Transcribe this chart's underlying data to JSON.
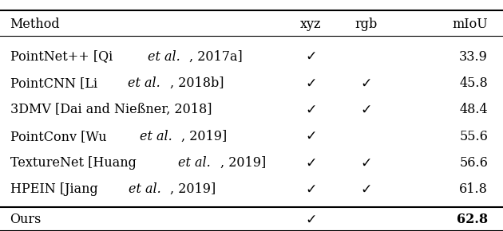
{
  "bg_color": "#ffffff",
  "text_color": "#000000",
  "line_color": "#000000",
  "font_size": 11.5,
  "rows": [
    {
      "method_parts": [
        {
          "text": "PointNet++ [Qi ",
          "italic": false
        },
        {
          "text": "et al.",
          "italic": true
        },
        {
          "text": ", 2017a]",
          "italic": false
        }
      ],
      "xyz": true,
      "rgb": false,
      "miou": "33.9",
      "bold_miou": false
    },
    {
      "method_parts": [
        {
          "text": "PointCNN [Li ",
          "italic": false
        },
        {
          "text": "et al.",
          "italic": true
        },
        {
          "text": ", 2018b]",
          "italic": false
        }
      ],
      "xyz": true,
      "rgb": true,
      "miou": "45.8",
      "bold_miou": false
    },
    {
      "method_parts": [
        {
          "text": "3DMV [Dai and Nießner, 2018]",
          "italic": false
        }
      ],
      "xyz": true,
      "rgb": true,
      "miou": "48.4",
      "bold_miou": false
    },
    {
      "method_parts": [
        {
          "text": "PointConv [Wu ",
          "italic": false
        },
        {
          "text": "et al.",
          "italic": true
        },
        {
          "text": ", 2019]",
          "italic": false
        }
      ],
      "xyz": true,
      "rgb": false,
      "miou": "55.6",
      "bold_miou": false
    },
    {
      "method_parts": [
        {
          "text": "TextureNet [Huang ",
          "italic": false
        },
        {
          "text": "et al.",
          "italic": true
        },
        {
          "text": ", 2019]",
          "italic": false
        }
      ],
      "xyz": true,
      "rgb": true,
      "miou": "56.6",
      "bold_miou": false
    },
    {
      "method_parts": [
        {
          "text": "HPEIN [Jiang ",
          "italic": false
        },
        {
          "text": "et al.",
          "italic": true
        },
        {
          "text": ", 2019]",
          "italic": false
        }
      ],
      "xyz": true,
      "rgb": true,
      "miou": "61.8",
      "bold_miou": false
    }
  ],
  "last_row": {
    "method_parts": [
      {
        "text": "Ours",
        "italic": false
      }
    ],
    "xyz": true,
    "rgb": false,
    "miou": "62.8",
    "bold_miou": true
  }
}
